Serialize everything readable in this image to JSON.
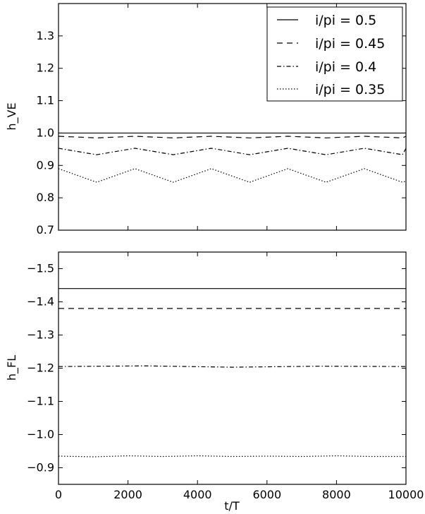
{
  "chart_data": [
    {
      "type": "line",
      "xlabel": "",
      "ylabel": "h_VE",
      "xlim": [
        0,
        10000
      ],
      "ylim": [
        0.7,
        1.4
      ],
      "yticks": [
        "0.7",
        "0.8",
        "0.9",
        "1.0",
        "1.1",
        "1.2",
        "1.3"
      ],
      "ytick_values": [
        0.7,
        0.8,
        0.9,
        1.0,
        1.1,
        1.2,
        1.3
      ],
      "xticks": [
        0,
        2000,
        4000,
        6000,
        8000,
        10000
      ],
      "legend": "top-right",
      "series": [
        {
          "name": "i/pi = 0.5",
          "style": "solid",
          "x": [
            0,
            2500,
            5000,
            7500,
            10000
          ],
          "y": [
            1.0,
            1.0,
            1.0,
            1.0,
            1.0
          ]
        },
        {
          "name": "i/pi = 0.45",
          "style": "dashed",
          "x": [
            0,
            1100,
            2200,
            3300,
            4400,
            5500,
            6600,
            7700,
            8800,
            9900,
            10000
          ],
          "y": [
            0.99,
            0.985,
            0.99,
            0.985,
            0.99,
            0.985,
            0.99,
            0.985,
            0.99,
            0.985,
            0.99
          ]
        },
        {
          "name": "i/pi = 0.4",
          "style": "dashdot",
          "x": [
            0,
            1100,
            2200,
            3300,
            4400,
            5500,
            6600,
            7700,
            8800,
            9900,
            10000
          ],
          "y": [
            0.953,
            0.933,
            0.953,
            0.933,
            0.953,
            0.933,
            0.953,
            0.933,
            0.953,
            0.933,
            0.953
          ]
        },
        {
          "name": "i/pi = 0.35",
          "style": "dotted",
          "x": [
            0,
            1100,
            2200,
            3300,
            4400,
            5500,
            6600,
            7700,
            8800,
            9900,
            10000
          ],
          "y": [
            0.89,
            0.848,
            0.89,
            0.848,
            0.89,
            0.848,
            0.89,
            0.848,
            0.89,
            0.848,
            0.852
          ]
        }
      ]
    },
    {
      "type": "line",
      "xlabel": "t/T",
      "ylabel": "h_FL",
      "xlim": [
        0,
        10000
      ],
      "ylim": [
        -0.85,
        -1.55
      ],
      "y_inverted": true,
      "yticks": [
        "−1.5",
        "−1.4",
        "−1.3",
        "−1.2",
        "−1.1",
        "−1.0",
        "−0.9"
      ],
      "ytick_values": [
        -1.5,
        -1.4,
        -1.3,
        -1.2,
        -1.1,
        -1.0,
        -0.9
      ],
      "xticks": [
        "0",
        "2000",
        "4000",
        "6000",
        "8000",
        "10000"
      ],
      "xtick_values": [
        0,
        2000,
        4000,
        6000,
        8000,
        10000
      ],
      "series": [
        {
          "name": "i/pi = 0.5",
          "style": "solid",
          "x": [
            0,
            10000
          ],
          "y": [
            -1.44,
            -1.44
          ]
        },
        {
          "name": "i/pi = 0.45",
          "style": "dashed",
          "x": [
            0,
            10000
          ],
          "y": [
            -1.38,
            -1.38
          ]
        },
        {
          "name": "i/pi = 0.4",
          "style": "dashdot",
          "x": [
            0,
            2500,
            5000,
            7500,
            10000
          ],
          "y": [
            -1.205,
            -1.207,
            -1.203,
            -1.206,
            -1.205
          ]
        },
        {
          "name": "i/pi = 0.35",
          "style": "dotted",
          "x": [
            0,
            1000,
            2000,
            3000,
            4000,
            5000,
            6000,
            7000,
            8000,
            9000,
            10000
          ],
          "y": [
            -0.935,
            -0.933,
            -0.936,
            -0.934,
            -0.936,
            -0.934,
            -0.935,
            -0.934,
            -0.936,
            -0.934,
            -0.934
          ]
        }
      ]
    }
  ]
}
